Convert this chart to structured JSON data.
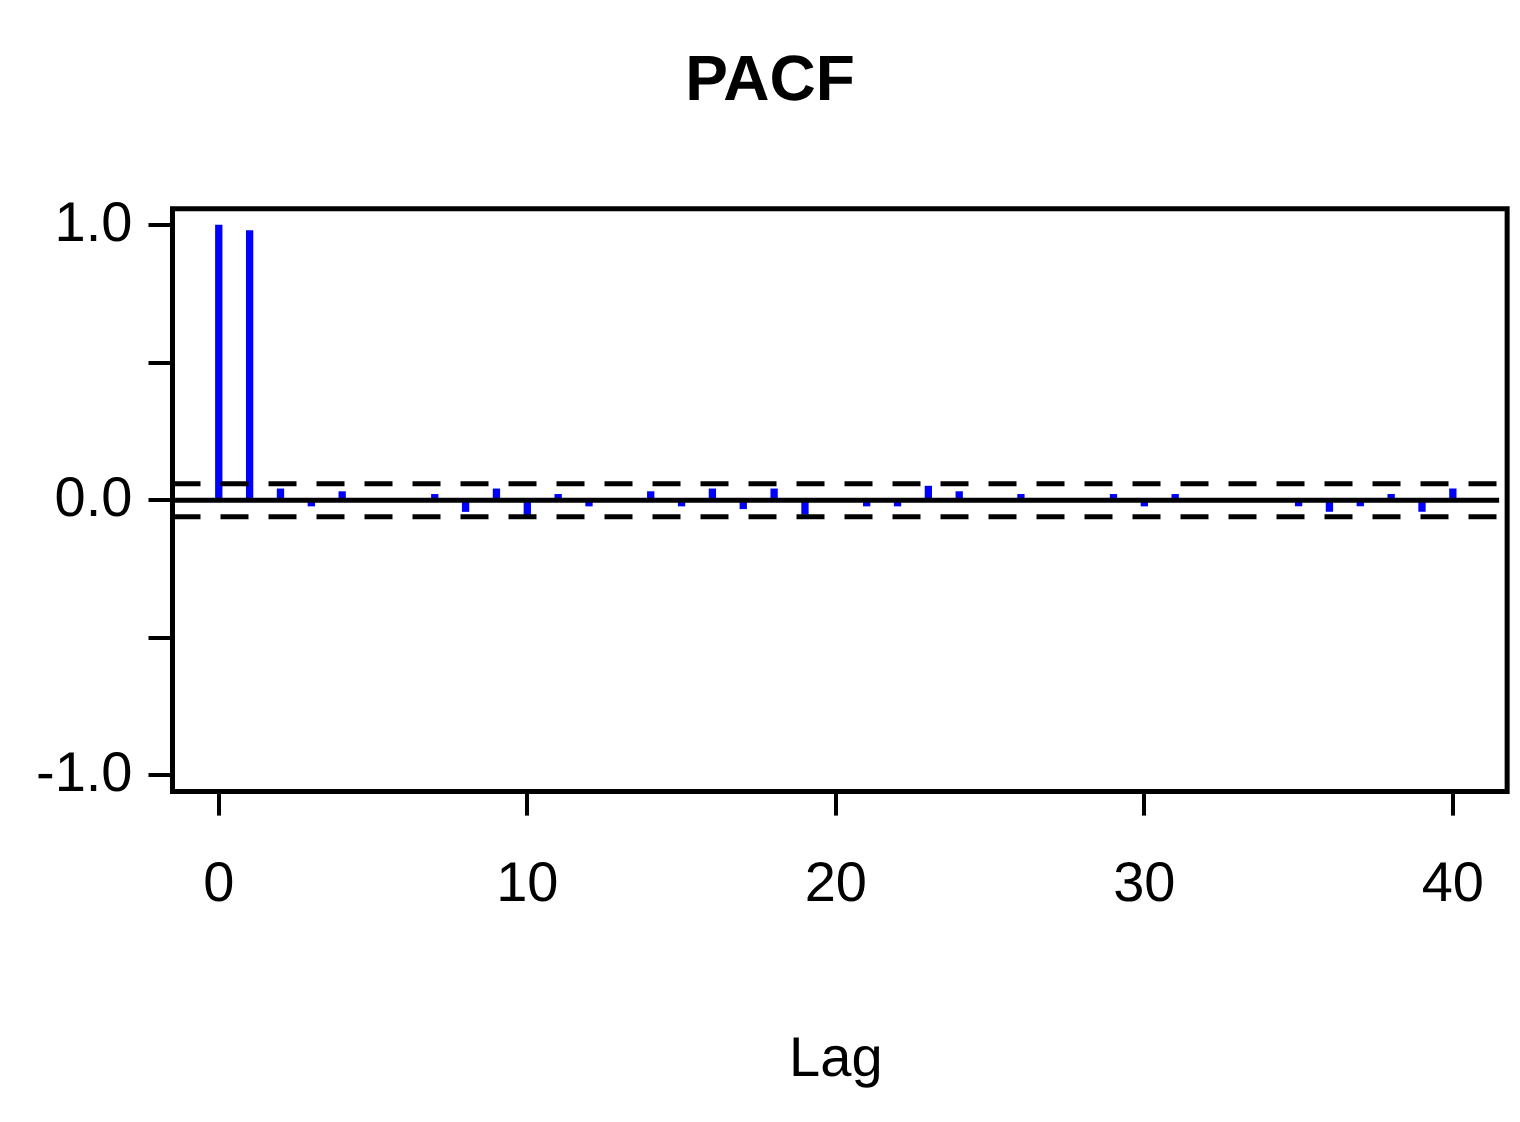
{
  "chart_data": {
    "type": "bar",
    "title": "PACF",
    "xlabel": "Lag",
    "x": [
      0,
      1,
      2,
      3,
      4,
      5,
      6,
      7,
      8,
      9,
      10,
      11,
      12,
      13,
      14,
      15,
      16,
      17,
      18,
      19,
      20,
      21,
      22,
      23,
      24,
      25,
      26,
      27,
      28,
      29,
      30,
      31,
      32,
      33,
      34,
      35,
      36,
      37,
      38,
      39,
      40
    ],
    "values": [
      1.0,
      0.98,
      0.04,
      -0.02,
      0.03,
      0,
      0,
      0.02,
      -0.04,
      0.04,
      -0.06,
      0.02,
      -0.02,
      0,
      0.03,
      -0.02,
      0.04,
      -0.03,
      0.04,
      -0.05,
      0,
      -0.02,
      -0.02,
      0.05,
      0.03,
      0,
      0.02,
      0,
      0,
      0.02,
      -0.02,
      0.02,
      0,
      0,
      0,
      -0.02,
      -0.04,
      -0.02,
      0.02,
      -0.04,
      0.04
    ],
    "color": "#0000ff",
    "xlim": [
      -1.5,
      41.5
    ],
    "xticks": [
      0,
      10,
      20,
      30,
      40
    ],
    "ylim": [
      -1.06,
      1.06
    ],
    "yticks": [
      {
        "value": -1,
        "label": "-1.0"
      },
      {
        "value": -0.5,
        "label": null
      },
      {
        "value": 0,
        "label": "0.0"
      },
      {
        "value": 0.5,
        "label": null
      },
      {
        "value": 1,
        "label": "1.0"
      }
    ],
    "ref_lines": [
      {
        "axis": "y",
        "value": 0,
        "color": "#000000",
        "line_style": "solid"
      },
      {
        "axis": "y",
        "value": 0.06,
        "color": "#000000",
        "line_style": "dashed"
      },
      {
        "axis": "y",
        "value": -0.06,
        "color": "#000000",
        "line_style": "dashed"
      }
    ],
    "grid": false,
    "legend": false
  }
}
